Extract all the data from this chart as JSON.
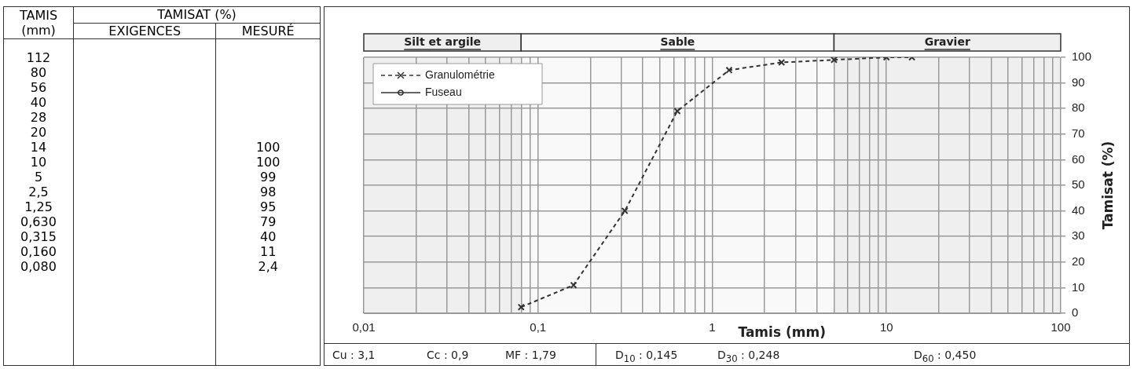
{
  "chart_data": [
    {
      "type": "other",
      "annotations": [
        "TAMIS",
        "(mm)",
        "TAMISAT (%)",
        "EXIGENCES",
        "MESURÉ"
      ],
      "categories": [
        "112",
        "80",
        "56",
        "40",
        "28",
        "20",
        "14",
        "10",
        "5",
        "2,5",
        "1,25",
        "0,630",
        "0,315",
        "0,160",
        "0,080"
      ],
      "value_labels": [
        null,
        null,
        null,
        null,
        null,
        null,
        "100",
        "100",
        "99",
        "98",
        "95",
        "79",
        "40",
        "11",
        "2,4"
      ]
    },
    {
      "type": "line",
      "xlabel": "Tamis (mm)",
      "ylabel": "Tamisat (%)",
      "log": "x",
      "grid": true,
      "legend": "top left",
      "xlim": [
        0.01,
        100
      ],
      "xticks": [
        {
          "value": 0.01,
          "label": "0,01"
        },
        {
          "value": 0.02,
          "label": null
        },
        {
          "value": 0.03,
          "label": null
        },
        {
          "value": 0.04,
          "label": null
        },
        {
          "value": 0.05,
          "label": null
        },
        {
          "value": 0.06,
          "label": null
        },
        {
          "value": 0.07,
          "label": null
        },
        {
          "value": 0.08,
          "label": null
        },
        {
          "value": 0.09,
          "label": null
        },
        {
          "value": 0.1,
          "label": "0,1"
        },
        {
          "value": 0.2,
          "label": null
        },
        {
          "value": 0.3,
          "label": null
        },
        {
          "value": 0.4,
          "label": null
        },
        {
          "value": 0.5,
          "label": null
        },
        {
          "value": 0.6,
          "label": null
        },
        {
          "value": 0.7,
          "label": null
        },
        {
          "value": 0.8,
          "label": null
        },
        {
          "value": 0.9,
          "label": null
        },
        {
          "value": 1,
          "label": "1"
        },
        {
          "value": 2,
          "label": null
        },
        {
          "value": 3,
          "label": null
        },
        {
          "value": 4,
          "label": null
        },
        {
          "value": 5,
          "label": null
        },
        {
          "value": 6,
          "label": null
        },
        {
          "value": 7,
          "label": null
        },
        {
          "value": 8,
          "label": null
        },
        {
          "value": 9,
          "label": null
        },
        {
          "value": 10,
          "label": "10"
        },
        {
          "value": 20,
          "label": null
        },
        {
          "value": 30,
          "label": null
        },
        {
          "value": 40,
          "label": null
        },
        {
          "value": 50,
          "label": null
        },
        {
          "value": 60,
          "label": null
        },
        {
          "value": 70,
          "label": null
        },
        {
          "value": 80,
          "label": null
        },
        {
          "value": 90,
          "label": null
        },
        {
          "value": 100,
          "label": "100"
        }
      ],
      "ylim": [
        0,
        100
      ],
      "yticks": [
        0,
        10,
        20,
        30,
        40,
        50,
        60,
        70,
        80,
        90,
        100
      ],
      "x": [
        0.08,
        0.16,
        0.315,
        0.63,
        1.25,
        2.5,
        5,
        10,
        14
      ],
      "series": [
        {
          "name": "Granulométrie",
          "color": "#333333",
          "marker": "cross",
          "line_style": "dashed",
          "values": [
            2.4,
            11,
            40,
            79,
            95,
            98,
            99,
            100,
            100
          ]
        },
        {
          "name": "Fuseau",
          "color": "#333333",
          "marker": "circle",
          "line_style": "solid",
          "values": [
            null,
            null,
            null,
            null,
            null,
            null,
            null,
            null,
            null
          ]
        }
      ],
      "bands": [
        {
          "axis": "x",
          "from": 0.01,
          "to": 0.08,
          "label": "Silt et argile",
          "color": "#efefef"
        },
        {
          "axis": "x",
          "from": 0.08,
          "to": 5,
          "label": "Sable",
          "color": "#f9f9f9"
        },
        {
          "axis": "x",
          "from": 5,
          "to": 100,
          "label": "Gravier",
          "color": "#efefef"
        }
      ],
      "annotations": [
        "Cu :  3,1",
        "Cc :  0,9",
        "MF :  1,79",
        "D$_{10}$ :  0,145",
        "D$_{30}$ :  0,248",
        "D$_{60}$ :  0,450"
      ]
    }
  ]
}
